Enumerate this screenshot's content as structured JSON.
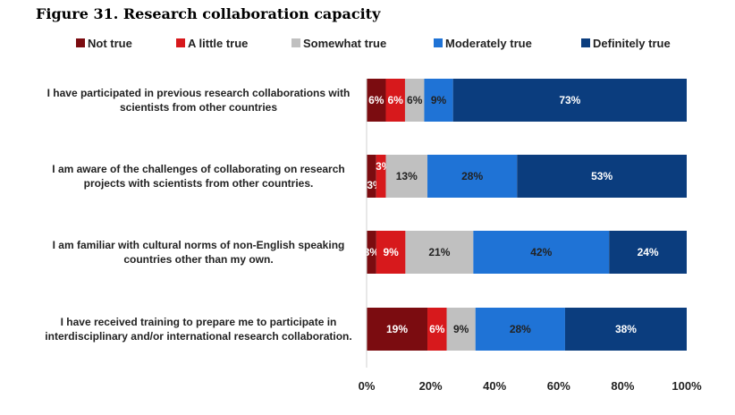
{
  "figure_title": "Figure 31. Research collaboration capacity",
  "chart_data": {
    "type": "bar",
    "orientation": "horizontal",
    "stacked": "percent",
    "categories": [
      "I have participated in previous research collaborations with|scientists from other countries",
      "I am aware of the challenges of collaborating on research|projects with scientists from other countries.",
      "I am familiar with cultural norms of non-English speaking|countries other than my own.",
      "I have received training to prepare me to participate in|interdisciplinary and/or international research collaboration."
    ],
    "series": [
      {
        "name": "Not true",
        "color": "#7b0c10",
        "label_color": "#ffffff",
        "values": [
          6,
          3,
          3,
          19
        ]
      },
      {
        "name": "A little true",
        "color": "#d7191c",
        "label_color": "#ffffff",
        "values": [
          6,
          3,
          9,
          6
        ]
      },
      {
        "name": "Somewhat true",
        "color": "#c0c0c0",
        "label_color": "#222222",
        "values": [
          6,
          13,
          21,
          9
        ]
      },
      {
        "name": "Moderately true",
        "color": "#1f73d6",
        "label_color": "#222222",
        "values": [
          9,
          28,
          42,
          28
        ]
      },
      {
        "name": "Definitely true",
        "color": "#0b3d7e",
        "label_color": "#ffffff",
        "values": [
          73,
          53,
          24,
          38
        ]
      }
    ],
    "data_labels": [
      [
        "6%",
        "6%",
        "6%",
        "9%",
        "73%"
      ],
      [
        "3%",
        "3%",
        "13%",
        "28%",
        "53%"
      ],
      [
        "3%",
        "9%",
        "21%",
        "42%",
        "24%"
      ],
      [
        "19%",
        "6%",
        "9%",
        "28%",
        "38%"
      ]
    ],
    "xlim": [
      0,
      100
    ],
    "x_ticks": [
      "0%",
      "20%",
      "40%",
      "60%",
      "80%",
      "100%"
    ],
    "legend_position": "top",
    "grid": false
  }
}
